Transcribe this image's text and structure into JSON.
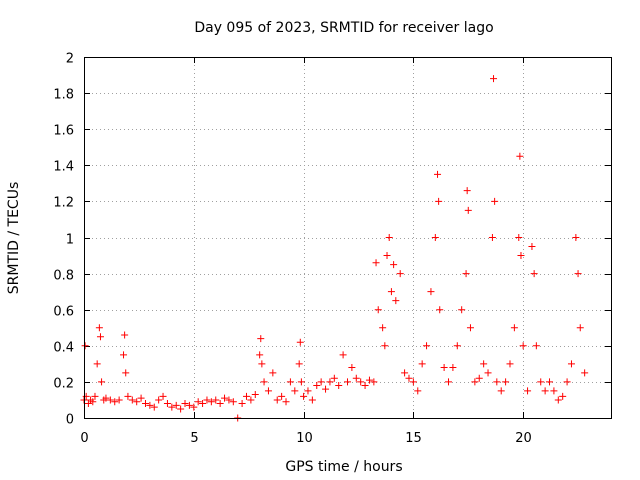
{
  "chart_data": {
    "type": "scatter",
    "title": "Day 095 of 2023, SRMTID for receiver lago",
    "xlabel": "GPS time / hours",
    "ylabel": "SRMTID / TECUs",
    "xlim": [
      0,
      24
    ],
    "ylim": [
      0,
      2
    ],
    "xticks": [
      0,
      5,
      10,
      15,
      20
    ],
    "xtick_labels": [
      "0",
      "5",
      "10",
      "15",
      "20"
    ],
    "yticks": [
      0,
      0.2,
      0.4,
      0.6,
      0.8,
      1,
      1.2,
      1.4,
      1.6,
      1.8,
      2
    ],
    "ytick_labels": [
      "0",
      "0.2",
      "0.4",
      "0.6",
      "0.8",
      "1",
      "1.2",
      "1.4",
      "1.6",
      "1.8",
      "2"
    ],
    "grid": true,
    "marker": "plus",
    "color": "#ff0000",
    "series": [
      {
        "name": "SRMTID",
        "x": [
          0.0,
          0.05,
          0.1,
          0.2,
          0.3,
          0.4,
          0.5,
          0.6,
          0.7,
          0.75,
          0.8,
          0.9,
          1.0,
          1.2,
          1.4,
          1.6,
          1.8,
          1.85,
          1.9,
          2.0,
          2.2,
          2.4,
          2.6,
          2.8,
          3.0,
          3.2,
          3.4,
          3.6,
          3.8,
          4.0,
          4.2,
          4.4,
          4.6,
          4.8,
          5.0,
          5.2,
          5.4,
          5.6,
          5.8,
          6.0,
          6.2,
          6.4,
          6.6,
          6.8,
          7.0,
          7.2,
          7.4,
          7.6,
          7.8,
          8.0,
          8.05,
          8.1,
          8.2,
          8.4,
          8.6,
          8.8,
          9.0,
          9.2,
          9.4,
          9.6,
          9.8,
          9.85,
          9.9,
          10.0,
          10.2,
          10.4,
          10.6,
          10.8,
          11.0,
          11.2,
          11.4,
          11.6,
          11.8,
          12.0,
          12.2,
          12.4,
          12.6,
          12.8,
          13.0,
          13.2,
          13.3,
          13.4,
          13.6,
          13.7,
          13.8,
          13.9,
          14.0,
          14.1,
          14.2,
          14.4,
          14.6,
          14.8,
          15.0,
          15.2,
          15.4,
          15.6,
          15.8,
          16.0,
          16.1,
          16.15,
          16.2,
          16.4,
          16.6,
          16.8,
          17.0,
          17.2,
          17.4,
          17.45,
          17.5,
          17.6,
          17.8,
          18.0,
          18.2,
          18.4,
          18.6,
          18.65,
          18.7,
          18.8,
          19.0,
          19.2,
          19.4,
          19.6,
          19.8,
          19.85,
          19.9,
          20.0,
          20.2,
          20.4,
          20.5,
          20.6,
          20.8,
          21.0,
          21.2,
          21.4,
          21.6,
          21.8,
          22.0,
          22.2,
          22.4,
          22.5,
          22.6,
          22.8
        ],
        "y": [
          0.1,
          0.4,
          0.12,
          0.08,
          0.1,
          0.09,
          0.12,
          0.3,
          0.5,
          0.45,
          0.2,
          0.1,
          0.11,
          0.1,
          0.09,
          0.1,
          0.35,
          0.46,
          0.25,
          0.12,
          0.1,
          0.09,
          0.11,
          0.08,
          0.07,
          0.06,
          0.1,
          0.12,
          0.08,
          0.06,
          0.07,
          0.05,
          0.08,
          0.07,
          0.06,
          0.09,
          0.08,
          0.1,
          0.09,
          0.1,
          0.08,
          0.11,
          0.1,
          0.09,
          0.0,
          0.08,
          0.12,
          0.1,
          0.13,
          0.35,
          0.44,
          0.3,
          0.2,
          0.15,
          0.25,
          0.1,
          0.12,
          0.09,
          0.2,
          0.15,
          0.3,
          0.42,
          0.2,
          0.12,
          0.15,
          0.1,
          0.18,
          0.2,
          0.16,
          0.2,
          0.22,
          0.18,
          0.35,
          0.2,
          0.28,
          0.22,
          0.2,
          0.18,
          0.21,
          0.2,
          0.86,
          0.6,
          0.5,
          0.4,
          0.9,
          1.0,
          0.7,
          0.85,
          0.65,
          0.8,
          0.25,
          0.22,
          0.2,
          0.15,
          0.3,
          0.4,
          0.7,
          1.0,
          1.35,
          1.2,
          0.6,
          0.28,
          0.2,
          0.28,
          0.4,
          0.6,
          0.8,
          1.26,
          1.15,
          0.5,
          0.2,
          0.22,
          0.3,
          0.25,
          1.0,
          1.88,
          1.2,
          0.2,
          0.15,
          0.2,
          0.3,
          0.5,
          1.0,
          1.45,
          0.9,
          0.4,
          0.15,
          0.95,
          0.8,
          0.4,
          0.2,
          0.15,
          0.2,
          0.15,
          0.1,
          0.12,
          0.2,
          0.3,
          1.0,
          0.8,
          0.5,
          0.25
        ]
      }
    ]
  }
}
